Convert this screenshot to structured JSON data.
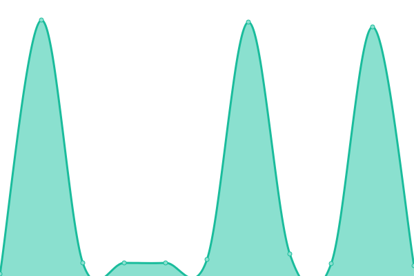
{
  "chart_data": {
    "type": "area",
    "x": [
      0,
      1,
      2,
      3,
      4,
      5,
      6,
      7,
      8,
      9,
      10
    ],
    "values": [
      3,
      371,
      19,
      19,
      19,
      24,
      368,
      32,
      18,
      361,
      15
    ],
    "ylim": [
      0,
      400
    ],
    "grid": false,
    "smooth": true,
    "colors": {
      "line": "#1abc9c",
      "fill": "#8ae0cf",
      "point": "#8ae0cf"
    }
  }
}
